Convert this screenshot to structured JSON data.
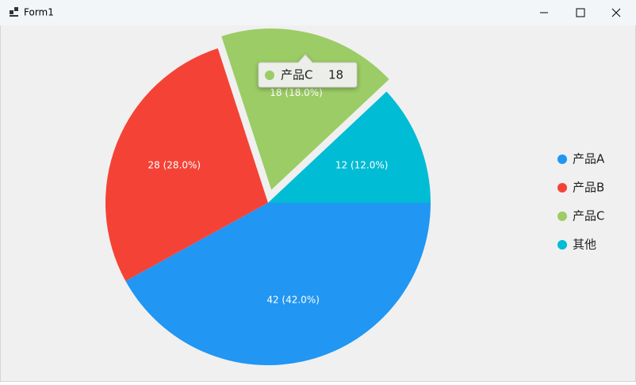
{
  "window": {
    "title": "Form1"
  },
  "chart_data": {
    "type": "pie",
    "categories": [
      "产品A",
      "产品B",
      "产品C",
      "其他"
    ],
    "values": [
      42,
      28,
      18,
      12
    ],
    "value_labels": [
      "42 (42.0%)",
      "28 (28.0%)",
      "18 (18.0%)",
      "12 (12.0%)"
    ],
    "colors": [
      "#2196f3",
      "#f44336",
      "#9ccc65",
      "#00bcd4"
    ],
    "legend": "right",
    "tooltip": {
      "category": "产品C",
      "value": 18
    }
  }
}
